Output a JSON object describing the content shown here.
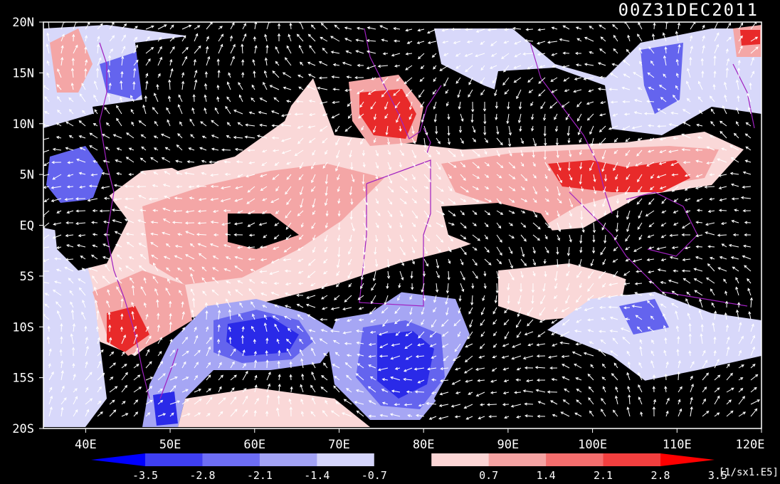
{
  "title": "00Z31DEC2011",
  "map": {
    "y_tick_labels": [
      "20N",
      "15N",
      "10N",
      "5N",
      "EQ",
      "5S",
      "10S",
      "15S",
      "20S"
    ],
    "x_tick_labels": [
      "40E",
      "50E",
      "60E",
      "70E",
      "80E",
      "90E",
      "100E",
      "110E",
      "120E"
    ],
    "lon_range": [
      35,
      120
    ],
    "lat_range": [
      -20,
      20
    ]
  },
  "colorbar": {
    "labels": [
      "-3.5",
      "-2.8",
      "-2.1",
      "-1.4",
      "-0.7",
      "0.7",
      "1.4",
      "2.1",
      "2.8",
      "3.5"
    ],
    "colors": [
      "#0000ff",
      "#3f3ff2",
      "#6e6ef4",
      "#a3a3f5",
      "#d5d5fb",
      "#000000",
      "#fbd5d5",
      "#f5a3a3",
      "#f46e6e",
      "#f23f3f",
      "#ff0000"
    ],
    "units": "[1/sx1.E5]"
  },
  "legend_colors": {
    "blue_strong": "#2a2ae8",
    "blue_mid": "#6464ee",
    "blue_light": "#a6a6f4",
    "blue_pale": "#d8d8fa",
    "red_pale": "#fad8d8",
    "red_light": "#f4a6a6",
    "red_mid": "#ee6464",
    "red_strong": "#e82a2a",
    "coast": "#a020c0",
    "vector": "#ffffff"
  }
}
